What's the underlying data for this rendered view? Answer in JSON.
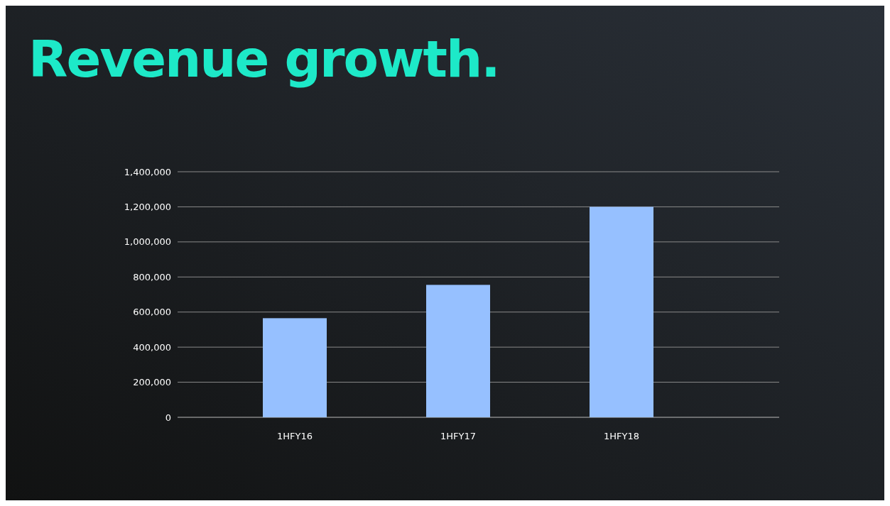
{
  "chart_data": {
    "type": "bar",
    "title": "Revenue growth.",
    "categories": [
      "1HFY16",
      "1HFY17",
      "1HFY18"
    ],
    "values": [
      565000,
      755000,
      1200000
    ],
    "color": "#96c0ff",
    "ylim": [
      0,
      1400000
    ],
    "yticks": [
      {
        "value": 0,
        "label": "0"
      },
      {
        "value": 200000,
        "label": "200,000"
      },
      {
        "value": 400000,
        "label": "400,000"
      },
      {
        "value": 600000,
        "label": "600,000"
      },
      {
        "value": 800000,
        "label": "800,000"
      },
      {
        "value": 1000000,
        "label": "1,000,000"
      },
      {
        "value": 1200000,
        "label": "1,200,000"
      },
      {
        "value": 1400000,
        "label": "1,400,000"
      }
    ],
    "grid": "y"
  }
}
